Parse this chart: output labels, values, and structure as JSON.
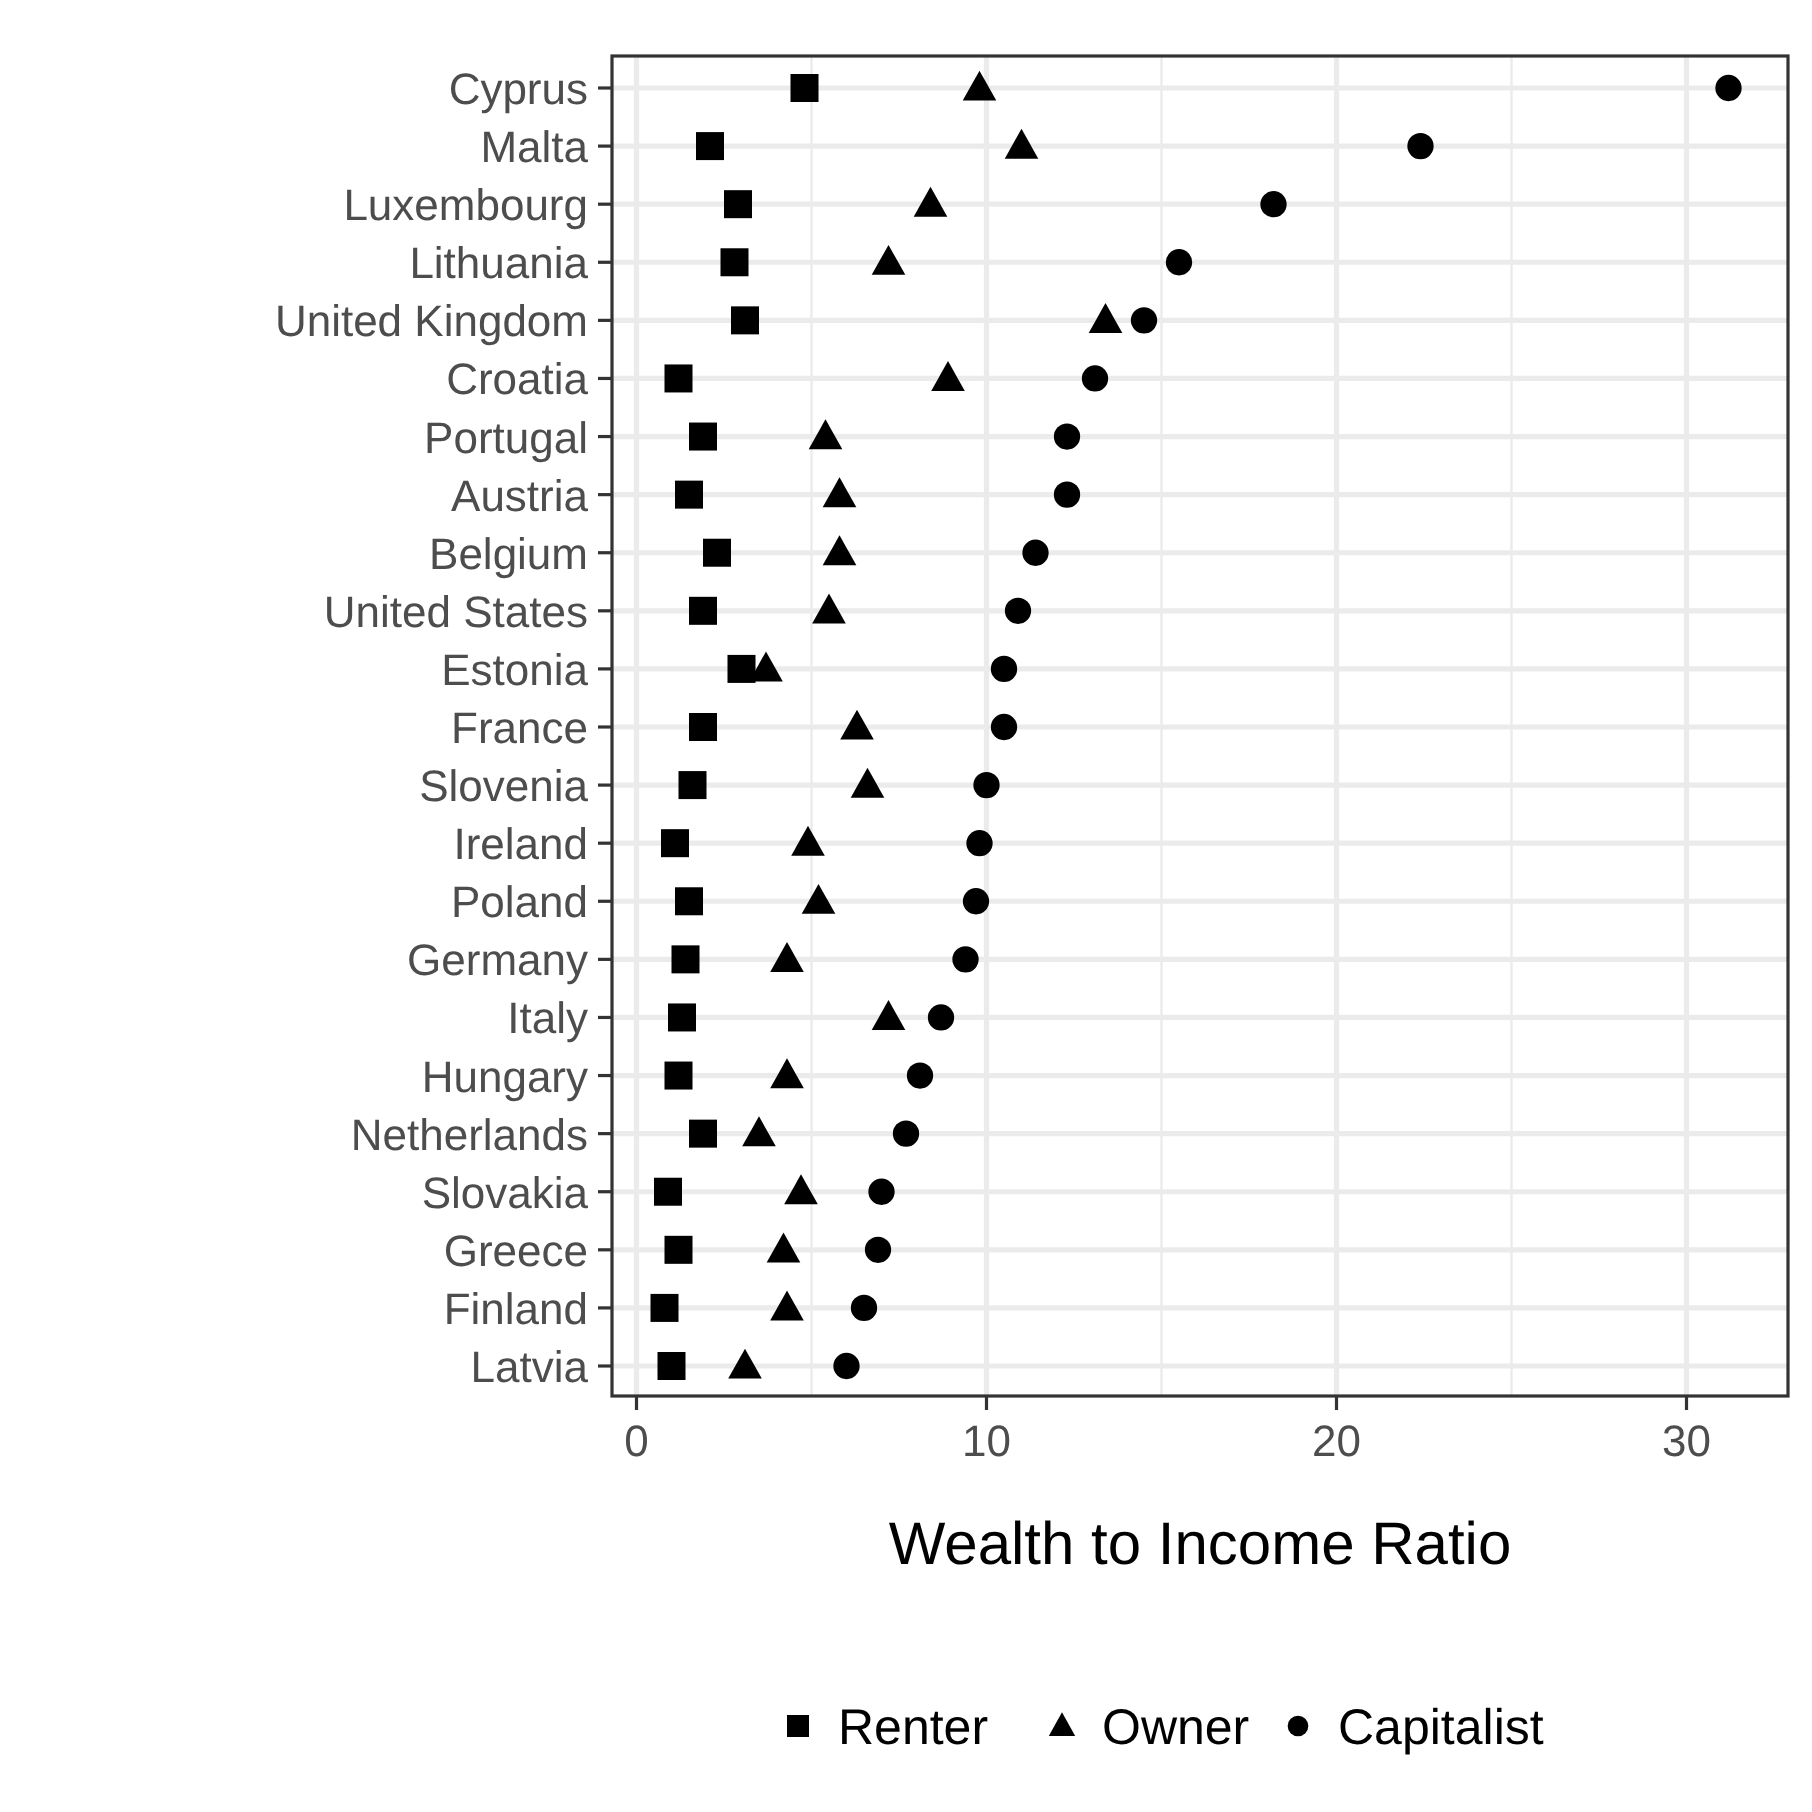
{
  "chart_data": {
    "type": "scatter",
    "orientation": "horizontal",
    "xlabel": "Wealth to Income Ratio",
    "categories": [
      "Cyprus",
      "Malta",
      "Luxembourg",
      "Lithuania",
      "United Kingdom",
      "Croatia",
      "Portugal",
      "Austria",
      "Belgium",
      "United States",
      "Estonia",
      "France",
      "Slovenia",
      "Ireland",
      "Poland",
      "Germany",
      "Italy",
      "Hungary",
      "Netherlands",
      "Slovakia",
      "Greece",
      "Finland",
      "Latvia"
    ],
    "series": [
      {
        "name": "Renter",
        "color": "#000000",
        "marker": "square",
        "values": [
          4.8,
          2.1,
          2.9,
          2.8,
          3.1,
          1.2,
          1.9,
          1.5,
          2.3,
          1.9,
          3.0,
          1.9,
          1.6,
          1.1,
          1.5,
          1.4,
          1.3,
          1.2,
          1.9,
          0.9,
          1.2,
          0.8,
          1.0
        ]
      },
      {
        "name": "Owner",
        "color": "#000000",
        "marker": "triangle",
        "values": [
          9.8,
          11.0,
          8.4,
          7.2,
          13.4,
          8.9,
          5.4,
          5.8,
          5.8,
          5.5,
          3.7,
          6.3,
          6.6,
          4.9,
          5.2,
          4.3,
          7.2,
          4.3,
          3.5,
          4.7,
          4.2,
          4.3,
          3.1
        ]
      },
      {
        "name": "Capitalist",
        "color": "#000000",
        "marker": "circle",
        "values": [
          31.2,
          22.4,
          18.2,
          15.5,
          14.5,
          13.1,
          12.3,
          12.3,
          11.4,
          10.9,
          10.5,
          10.5,
          10.0,
          9.8,
          9.7,
          9.4,
          8.7,
          8.1,
          7.7,
          7.0,
          6.9,
          6.5,
          6.0
        ]
      }
    ],
    "xlim": [
      -0.7,
      32.9
    ],
    "xticks": [
      0,
      10,
      20,
      30
    ],
    "grid": true,
    "legend": "bottom"
  }
}
